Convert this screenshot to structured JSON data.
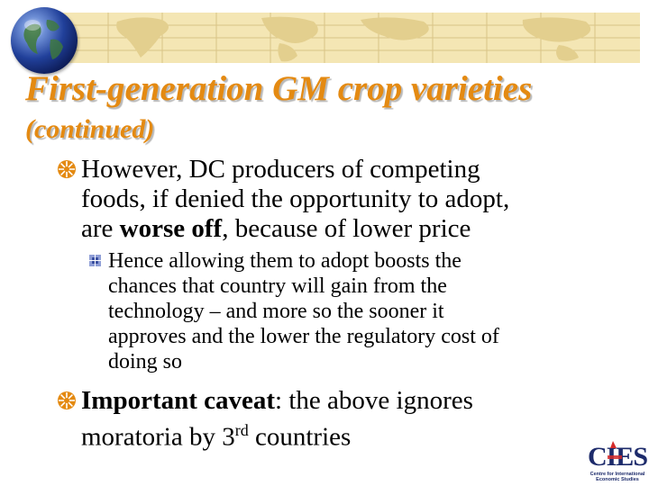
{
  "slide": {
    "title_line1": "First-generation GM crop varieties",
    "title_line2": "(continued)",
    "bullets": [
      {
        "lines": [
          {
            "text": "However, DC producers of competing"
          },
          {
            "text": "foods, if denied the opportunity to adopt,"
          },
          {
            "before": "are ",
            "bold": "worse off",
            "after": ", because of lower price"
          }
        ],
        "sub_bullets": [
          {
            "lines": [
              "Hence allowing them to adopt boosts the",
              "chances that country will gain from the",
              "technology – and more so the sooner it",
              "approves and the lower the regulatory cost of",
              "doing so"
            ]
          }
        ]
      },
      {
        "lines": [
          {
            "bold": "Important caveat",
            "after": ": the above ignores"
          },
          {
            "before": "moratoria by 3",
            "sup": "rd",
            "after": " countries"
          }
        ]
      }
    ]
  },
  "logo": {
    "mark": "CIES",
    "caption_line1": "Centre for International",
    "caption_line2": "Economic Studies"
  },
  "colors": {
    "title": "#e48a12",
    "bullet": "#e48a12",
    "sub_bullet": "#5b6fb8",
    "banner": "#f4e6b4",
    "logo_blue": "#1d2b6b",
    "logo_red": "#d42a2a"
  },
  "icons": {
    "bullet": "orange-starburst-bullet-icon",
    "sub_bullet": "blue-square-bullet-icon",
    "header": "globe-icon"
  }
}
